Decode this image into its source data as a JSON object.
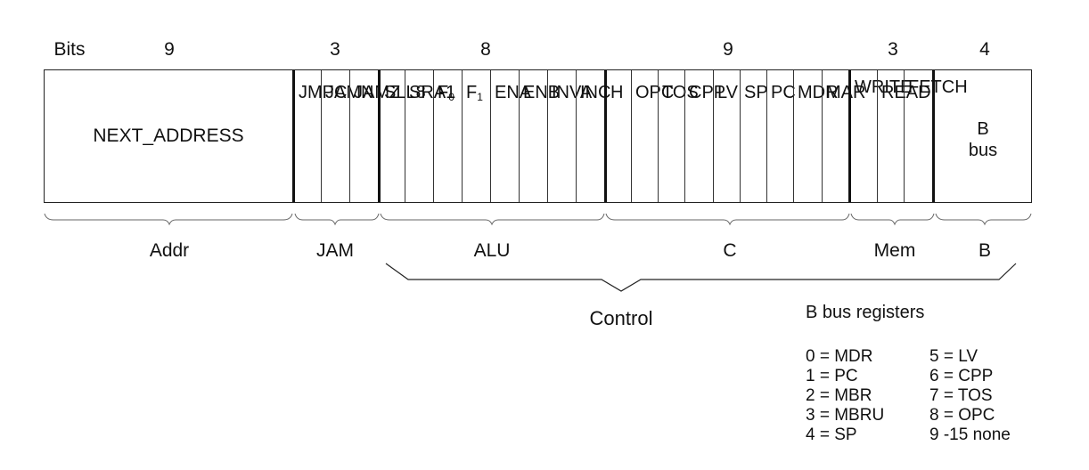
{
  "bits_row": {
    "label": "Bits",
    "counts": [
      "9",
      "3",
      "8",
      "9",
      "3",
      "4"
    ]
  },
  "fields": {
    "next_address": "NEXT_ADDRESS",
    "jam": [
      "JMPC",
      "JAMN",
      "JAMZ"
    ],
    "alu": [
      "SLL8",
      "SRA1",
      "F0",
      "F1",
      "ENA",
      "ENB",
      "INVA",
      "INC"
    ],
    "c": [
      "H",
      "OPC",
      "TOS",
      "CPP",
      "LV",
      "SP",
      "PC",
      "MDR",
      "MAR"
    ],
    "mem": [
      "WRITE",
      "READ",
      "FETCH"
    ],
    "b_bus": [
      "B",
      "bus"
    ]
  },
  "groups": [
    "Addr",
    "JAM",
    "ALU",
    "C",
    "Mem",
    "B"
  ],
  "control_label": "Control",
  "legend": {
    "title": "B bus registers",
    "left": [
      "0 = MDR",
      "1 = PC",
      "2 = MBR",
      "3 = MBRU",
      "4 = SP"
    ],
    "right": [
      "5 = LV",
      "6 = CPP",
      "7 = TOS",
      "8 = OPC",
      "9 -15 none"
    ]
  }
}
